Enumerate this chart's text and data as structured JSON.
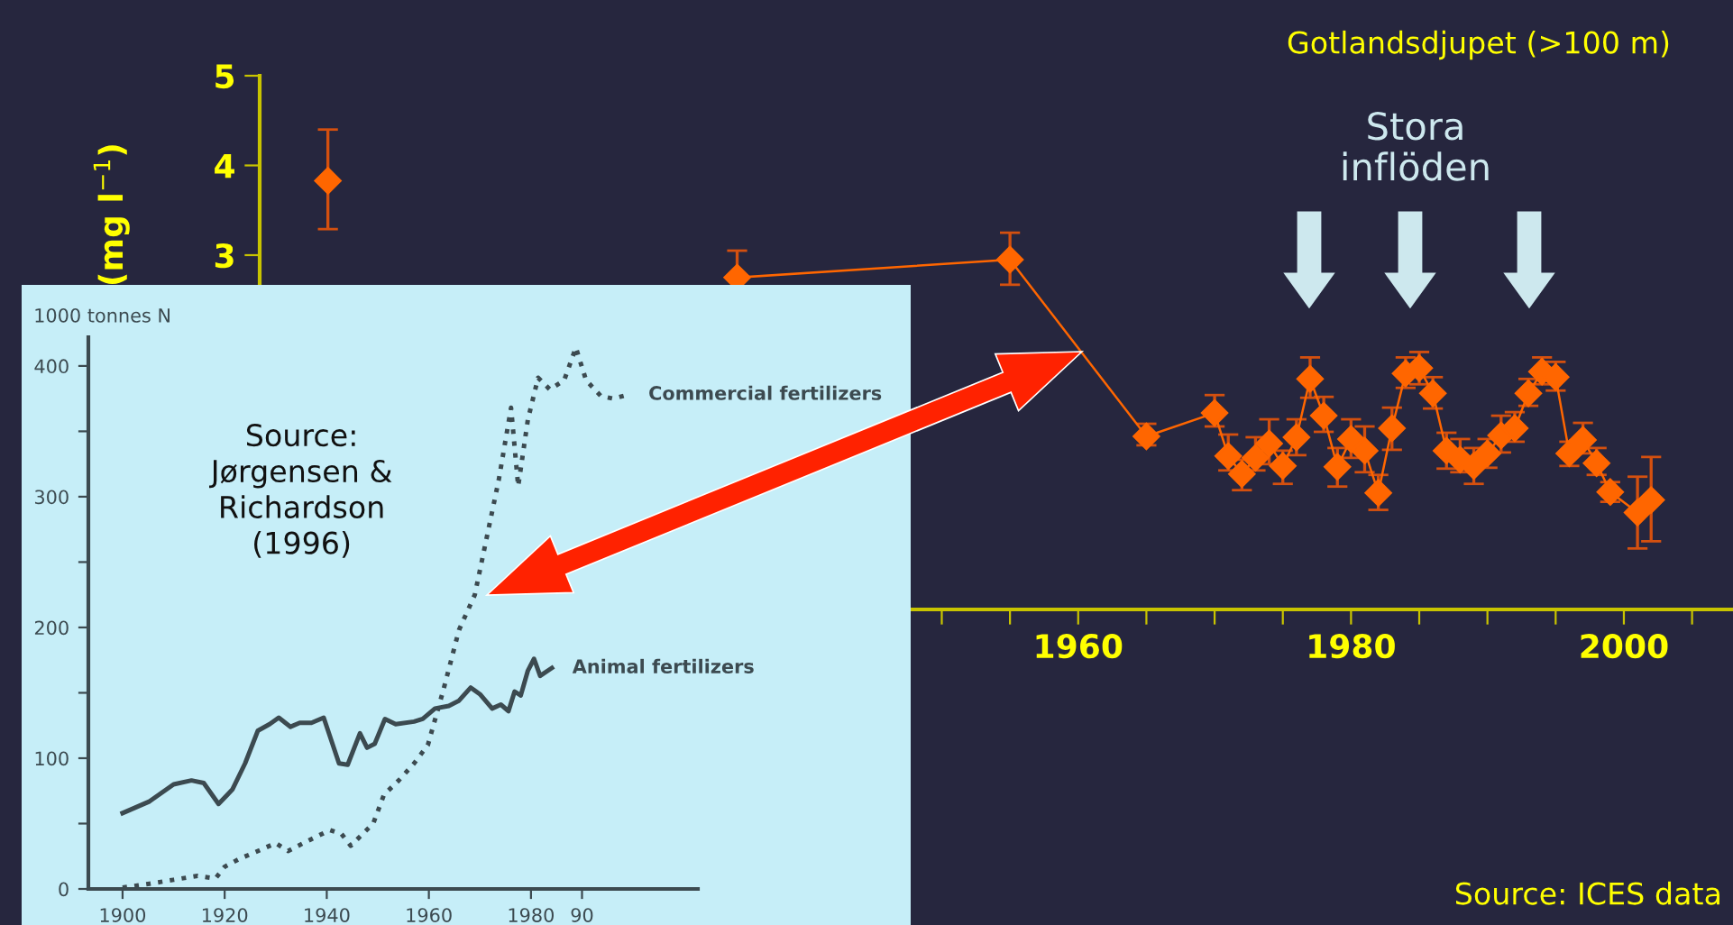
{
  "chart_data": [
    {
      "type": "line",
      "title": "Gotlandsdjupet (>100 m)",
      "ylabel": "(mg l$^{−1}$)",
      "annotations": [
        "Stora\ninflöden",
        "Source: ICES data"
      ],
      "x": [
        1905,
        1925,
        1935,
        1955,
        1965,
        1970,
        1971,
        1972,
        1973,
        1974,
        1975,
        1976,
        1977,
        1978,
        1979,
        1980,
        1981,
        1982,
        1983,
        1984,
        1985,
        1986,
        1987,
        1988,
        1989,
        1990,
        1991,
        1992,
        1993,
        1994,
        1995,
        1996,
        1997,
        1998,
        1999,
        2001,
        2002
      ],
      "series": [
        {
          "color": "#ff6600",
          "values": [
            3.83,
            null,
            2.75,
            2.95,
            0.98,
            1.24,
            0.76,
            0.56,
            0.74,
            0.9,
            0.65,
            0.97,
            1.62,
            1.21,
            0.64,
            0.95,
            0.82,
            0.35,
            1.07,
            1.68,
            1.74,
            1.46,
            0.82,
            0.72,
            0.65,
            0.79,
            0.99,
            1.07,
            1.46,
            1.7,
            1.64,
            0.79,
            0.94,
            0.68,
            0.36,
            0.13,
            0.27
          ],
          "errors": [
            [
              3.29,
              4.4
            ],
            null,
            [
              2.75,
              3.05
            ],
            [
              2.67,
              3.25
            ],
            [
              0.88,
              1.12
            ],
            [
              1.09,
              1.44
            ],
            [
              0.6,
              1.0
            ],
            [
              0.38,
              0.72
            ],
            [
              0.6,
              0.97
            ],
            [
              0.67,
              1.17
            ],
            [
              0.45,
              0.82
            ],
            [
              0.77,
              1.17
            ],
            [
              1.41,
              1.86
            ],
            [
              1.03,
              1.42
            ],
            [
              0.42,
              0.85
            ],
            [
              0.74,
              1.17
            ],
            [
              0.58,
              1.09
            ],
            [
              0.16,
              0.55
            ],
            [
              0.83,
              1.3
            ],
            [
              1.52,
              1.86
            ],
            [
              1.56,
              1.92
            ],
            [
              1.29,
              1.64
            ],
            [
              0.62,
              1.02
            ],
            [
              0.58,
              0.95
            ],
            [
              0.45,
              0.85
            ],
            [
              0.63,
              0.95
            ],
            [
              0.8,
              1.21
            ],
            [
              0.92,
              1.25
            ],
            [
              1.32,
              1.62
            ],
            [
              1.56,
              1.86
            ],
            [
              1.49,
              1.81
            ],
            [
              0.65,
              0.92
            ],
            [
              0.79,
              1.13
            ],
            [
              0.55,
              0.85
            ],
            [
              0.25,
              0.47
            ],
            [
              -0.27,
              0.53
            ],
            [
              -0.19,
              0.75
            ]
          ]
        }
      ],
      "xlim": [
        1900,
        2008
      ],
      "ylim": [
        -0.95,
        5
      ],
      "xticks": [
        {
          "value": 1950,
          "label": null
        },
        {
          "value": 1955,
          "label": null
        },
        1960,
        {
          "value": 1965,
          "label": null
        },
        {
          "value": 1970,
          "label": null
        },
        {
          "value": 1975,
          "label": null
        },
        1980,
        {
          "value": 1985,
          "label": null
        },
        {
          "value": 1990,
          "label": null
        },
        {
          "value": 1995,
          "label": null
        },
        2000,
        {
          "value": 2005,
          "label": null
        }
      ],
      "yticks": [
        3,
        4,
        5
      ],
      "marker": "diamond",
      "legend": false,
      "grid": false
    },
    {
      "type": "line",
      "ylabel": "1000 tonnes N",
      "annotations": [
        "Source:\nJørgensen &\nRichardson\n(1996)"
      ],
      "series": [
        {
          "name": "Commercial fertilizers",
          "color": "#3c4a50",
          "line_style": "dotted",
          "x": [
            1900,
            1905.3,
            1910,
            1914.7,
            1918.2,
            1920,
            1922.9,
            1926.5,
            1930,
            1932.4,
            1935.9,
            1940.6,
            1942.9,
            1944.7,
            1946.5,
            1949.1,
            1951.2,
            1954.1,
            1957.1,
            1959.8,
            1962.9,
            1965.9,
            1969,
            1973.7,
            1976.1,
            1977.5,
            1979.4,
            1981.4,
            1983.7,
            1986.5,
            1988.8,
            1990.8,
            1993.7,
            1996.1,
            1999
          ],
          "values": [
            1,
            4,
            7,
            10,
            8,
            17,
            23,
            29,
            35,
            29,
            36,
            45,
            42,
            33,
            40,
            50,
            72,
            83,
            96,
            110,
            153,
            198,
            225,
            313,
            368,
            308,
            359,
            391,
            382,
            389,
            414,
            389,
            377,
            375,
            378
          ]
        },
        {
          "name": "Animal fertilizers",
          "color": "#3c4a50",
          "line_style": "solid",
          "x": [
            1900,
            1905.3,
            1910,
            1913.5,
            1915.9,
            1918.8,
            1921.5,
            1924,
            1926.5,
            1928.8,
            1930.6,
            1932.9,
            1934.7,
            1937,
            1939.4,
            1942.4,
            1944.1,
            1946.5,
            1947.9,
            1949.4,
            1951.4,
            1953.5,
            1957.1,
            1958.8,
            1961.2,
            1963.9,
            1965.9,
            1968.2,
            1970,
            1972.4,
            1974.1,
            1975.6,
            1976.8,
            1978,
            1979.4,
            1980.6,
            1981.8,
            1984.1
          ],
          "values": [
            58,
            67,
            80,
            83,
            81,
            65,
            76,
            96,
            121,
            126,
            131,
            124,
            127,
            127,
            131,
            96,
            95,
            119,
            108,
            111,
            130,
            126,
            128,
            130,
            138,
            140,
            144,
            154,
            149,
            138,
            141,
            136,
            151,
            148,
            167,
            176,
            163,
            169
          ]
        }
      ],
      "xlim": [
        1893.3,
        2012.7
      ],
      "ylim": [
        0,
        422
      ],
      "xticks": [
        1900,
        1920,
        1940,
        1960,
        1980,
        {
          "value": 1990,
          "label": "90"
        }
      ],
      "yticks": [
        0,
        {
          "value": 50,
          "label": null
        },
        100,
        {
          "value": 150,
          "label": null
        },
        200,
        {
          "value": 250,
          "label": null
        },
        300,
        {
          "value": 350,
          "label": null
        },
        400
      ],
      "legend": false,
      "grid": false
    }
  ]
}
